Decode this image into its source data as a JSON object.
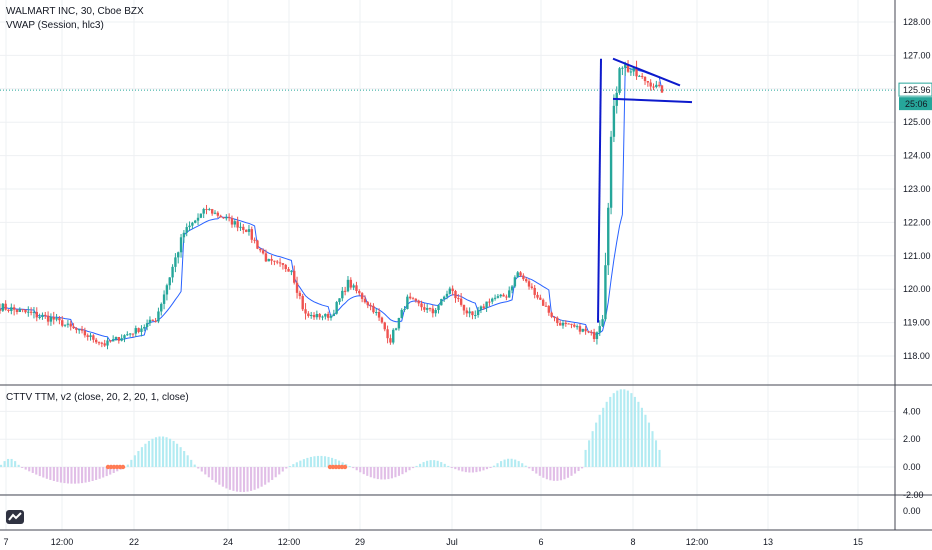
{
  "header": {
    "title": "WALMART INC, 30, Cboe BZX",
    "vwap_label": "VWAP (Session, hlc3)",
    "indicator_label": "CTTV TTM, v2 (close, 20, 2, 20, 1, close)"
  },
  "price_badges": {
    "last_price": "125.96",
    "countdown": "25:06",
    "last_price_color": "#26a69a"
  },
  "logo_icon": "tradingview-logo-icon",
  "chart_data": [
    {
      "type": "candlestick",
      "title": "WALMART INC, 30, Cboe BZX",
      "y_ticks": [
        118,
        119,
        120,
        121,
        122,
        123,
        124,
        125,
        126,
        127,
        128
      ],
      "y_tick_labels": [
        "118.00",
        "119.00",
        "120.00",
        "121.00",
        "122.00",
        "123.00",
        "124.00",
        "125.00",
        "126.00",
        "127.00",
        "128.00"
      ],
      "ylim": [
        117.3,
        128.5
      ],
      "x_tick_labels": [
        "7",
        "12:00",
        "22",
        "24",
        "12:00",
        "29",
        "Jul",
        "6",
        "8",
        "12:00",
        "13",
        "15"
      ],
      "up_color": "#26a69a",
      "down_color": "#ef5350",
      "vwap_color": "#2962ff",
      "grid": true,
      "last_price": 125.96,
      "segments": [
        {
          "start": 119.5,
          "end": 119.1,
          "count": 20,
          "vol": 0.25
        },
        {
          "start": 119.1,
          "end": 118.35,
          "count": 18,
          "vol": 0.18
        },
        {
          "start": 118.35,
          "end": 118.8,
          "count": 12,
          "vol": 0.18
        },
        {
          "start": 118.8,
          "end": 119.1,
          "count": 6,
          "vol": 0.2
        },
        {
          "start": 119.1,
          "end": 121.7,
          "count": 10,
          "vol": 0.28
        },
        {
          "start": 121.7,
          "end": 122.4,
          "count": 8,
          "vol": 0.2
        },
        {
          "start": 122.4,
          "end": 121.8,
          "count": 14,
          "vol": 0.2
        },
        {
          "start": 121.8,
          "end": 120.8,
          "count": 8,
          "vol": 0.25
        },
        {
          "start": 120.8,
          "end": 120.6,
          "count": 8,
          "vol": 0.2
        },
        {
          "start": 120.6,
          "end": 119.2,
          "count": 5,
          "vol": 0.3
        },
        {
          "start": 119.2,
          "end": 119.2,
          "count": 9,
          "vol": 0.15
        },
        {
          "start": 119.2,
          "end": 120.2,
          "count": 6,
          "vol": 0.2
        },
        {
          "start": 120.2,
          "end": 119.4,
          "count": 9,
          "vol": 0.2
        },
        {
          "start": 119.4,
          "end": 118.5,
          "count": 6,
          "vol": 0.25
        },
        {
          "start": 118.5,
          "end": 119.7,
          "count": 6,
          "vol": 0.2
        },
        {
          "start": 119.7,
          "end": 119.3,
          "count": 9,
          "vol": 0.2
        },
        {
          "start": 119.3,
          "end": 120.0,
          "count": 6,
          "vol": 0.15
        },
        {
          "start": 120.0,
          "end": 119.1,
          "count": 8,
          "vol": 0.25
        },
        {
          "start": 119.1,
          "end": 119.7,
          "count": 6,
          "vol": 0.2
        },
        {
          "start": 119.7,
          "end": 119.8,
          "count": 6,
          "vol": 0.15
        },
        {
          "start": 119.8,
          "end": 120.5,
          "count": 4,
          "vol": 0.2
        },
        {
          "start": 120.5,
          "end": 119.9,
          "count": 6,
          "vol": 0.15
        },
        {
          "start": 119.9,
          "end": 119.0,
          "count": 8,
          "vol": 0.2
        },
        {
          "start": 119.0,
          "end": 118.8,
          "count": 8,
          "vol": 0.15
        },
        {
          "start": 118.8,
          "end": 118.6,
          "count": 5,
          "vol": 0.2
        },
        {
          "start": 118.6,
          "end": 119.2,
          "count": 3,
          "vol": 0.25
        },
        {
          "start": 119.2,
          "end": 124.5,
          "count": 3,
          "vol": 0.6
        },
        {
          "start": 124.5,
          "end": 126.8,
          "count": 3,
          "vol": 0.5
        },
        {
          "start": 126.8,
          "end": 126.4,
          "count": 6,
          "vol": 0.35
        },
        {
          "start": 126.4,
          "end": 125.96,
          "count": 9,
          "vol": 0.2
        }
      ],
      "annotations": [
        {
          "type": "line",
          "points": [
            [
              119.0,
              598
            ],
            [
              126.9,
              601
            ]
          ],
          "color": "#0d1acc"
        },
        {
          "type": "line",
          "points": [
            [
              126.9,
              613
            ],
            [
              126.1,
              680
            ]
          ],
          "color": "#0d1acc"
        },
        {
          "type": "line",
          "points": [
            [
              125.7,
              613
            ],
            [
              125.6,
              692
            ]
          ],
          "color": "#0d1acc"
        }
      ]
    },
    {
      "type": "histogram",
      "title": "CTTV TTM, v2 (close, 20, 2, 20, 1, close)",
      "y_ticks": [
        -2,
        0,
        2,
        4
      ],
      "y_tick_labels": [
        "-2.00",
        "0.00",
        "2.00",
        "4.00"
      ],
      "ylim": [
        -2.2,
        5.8
      ],
      "pos_color": "#b2ebf2",
      "neg_color": "#e1bee7",
      "squeeze_color": "#ff7b54",
      "pattern": [
        {
          "from": 0,
          "to": 6,
          "peak": 0.6
        },
        {
          "from": 6,
          "to": 36,
          "peak": -1.2
        },
        {
          "from": 36,
          "to": 56,
          "peak": 2.2
        },
        {
          "from": 56,
          "to": 82,
          "peak": -1.8
        },
        {
          "from": 82,
          "to": 100,
          "peak": 0.8
        },
        {
          "from": 100,
          "to": 118,
          "peak": -0.9
        },
        {
          "from": 118,
          "to": 128,
          "peak": 0.5
        },
        {
          "from": 128,
          "to": 140,
          "peak": -0.4
        },
        {
          "from": 140,
          "to": 150,
          "peak": 0.6
        },
        {
          "from": 150,
          "to": 166,
          "peak": -1.0
        },
        {
          "from": 166,
          "to": 188,
          "peak": 5.6
        }
      ]
    },
    {
      "type": "line",
      "y_ticks": [
        0
      ],
      "y_tick_labels": [
        "0.00"
      ]
    }
  ]
}
